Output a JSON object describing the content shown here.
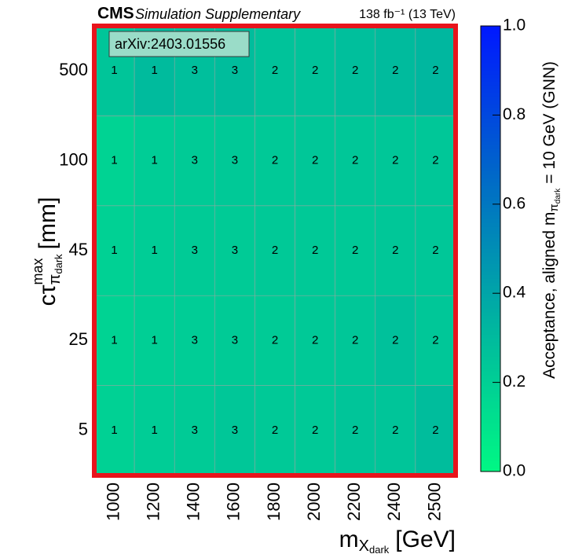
{
  "chart_data": {
    "type": "heatmap",
    "experiment": "CMS",
    "subtitle": "Simulation Supplementary",
    "lumi": "138 fb⁻¹ (13 TeV)",
    "annotation": "arXiv:2403.01556",
    "xlabel": {
      "base": "m",
      "sub": "X",
      "subsub": "dark",
      "unit": "[GeV]"
    },
    "ylabel": {
      "base": "cτ",
      "sup": "max",
      "sub": "π",
      "subsub": "dark",
      "unit": "[mm]"
    },
    "zlabel": {
      "base": "Acceptance, aligned m",
      "sub": "π",
      "subsub": "dark",
      "rest": "= 10 GeV (GNN)"
    },
    "x_categories": [
      "1000",
      "1200",
      "1400",
      "1600",
      "1800",
      "2000",
      "2200",
      "2400",
      "2500"
    ],
    "y_categories": [
      "5",
      "25",
      "45",
      "100",
      "500"
    ],
    "z": [
      [
        0.19,
        0.21,
        0.22,
        0.24,
        0.23,
        0.23,
        0.25,
        0.25,
        0.29
      ],
      [
        0.18,
        0.2,
        0.21,
        0.22,
        0.22,
        0.23,
        0.24,
        0.27,
        0.24
      ],
      [
        0.19,
        0.21,
        0.22,
        0.22,
        0.23,
        0.23,
        0.23,
        0.24,
        0.24
      ],
      [
        0.18,
        0.21,
        0.22,
        0.23,
        0.23,
        0.24,
        0.24,
        0.24,
        0.24
      ],
      [
        0.25,
        0.3,
        0.28,
        0.29,
        0.26,
        0.26,
        0.28,
        0.3,
        0.32
      ]
    ],
    "cell_labels": [
      [
        1,
        1,
        3,
        3,
        2,
        2,
        2,
        2,
        2
      ],
      [
        1,
        1,
        3,
        3,
        2,
        2,
        2,
        2,
        2
      ],
      [
        1,
        1,
        3,
        3,
        2,
        2,
        2,
        2,
        2
      ],
      [
        1,
        1,
        3,
        3,
        2,
        2,
        2,
        2,
        2
      ],
      [
        1,
        1,
        3,
        3,
        2,
        2,
        2,
        2,
        2
      ]
    ],
    "zlim": [
      0,
      1
    ],
    "zticks": [
      {
        "value": 0,
        "label": "0.0"
      },
      {
        "value": 0.2,
        "label": "0.2"
      },
      {
        "value": 0.4,
        "label": "0.4"
      },
      {
        "value": 0.6,
        "label": "0.6"
      },
      {
        "value": 0.8,
        "label": "0.8"
      },
      {
        "value": 1,
        "label": "1.0"
      }
    ],
    "colormap": [
      "#00f884",
      "#00b4a0",
      "#0068c8",
      "#0018ff"
    ],
    "frame_color": "#e8141c"
  }
}
